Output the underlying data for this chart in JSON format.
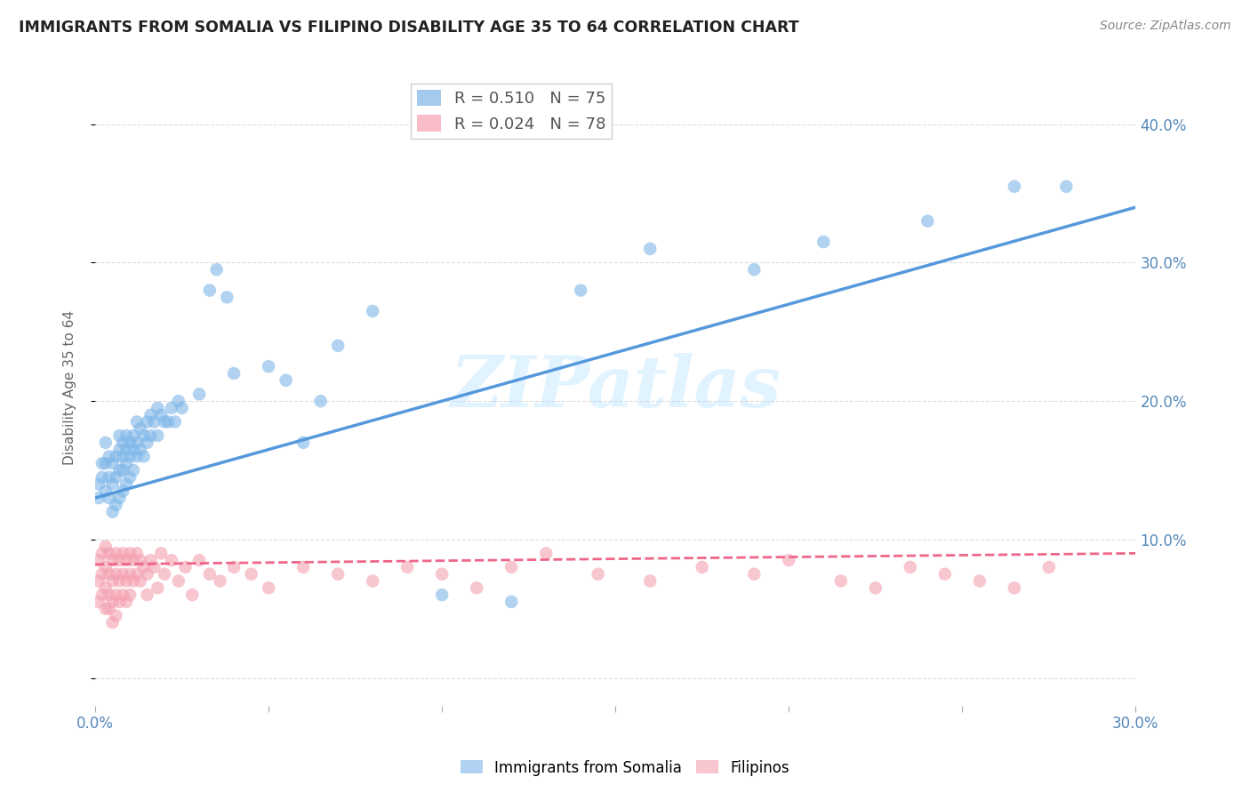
{
  "title": "IMMIGRANTS FROM SOMALIA VS FILIPINO DISABILITY AGE 35 TO 64 CORRELATION CHART",
  "source": "Source: ZipAtlas.com",
  "ylabel": "Disability Age 35 to 64",
  "xlim": [
    0.0,
    0.3
  ],
  "ylim": [
    -0.02,
    0.44
  ],
  "xticks": [
    0.0,
    0.05,
    0.1,
    0.15,
    0.2,
    0.25,
    0.3
  ],
  "xtick_labels": [
    "0.0%",
    "",
    "",
    "",
    "",
    "",
    "30.0%"
  ],
  "yticks": [
    0.0,
    0.1,
    0.2,
    0.3,
    0.4
  ],
  "ytick_labels": [
    "",
    "10.0%",
    "20.0%",
    "30.0%",
    "40.0%"
  ],
  "legend_somalia": "Immigrants from Somalia",
  "legend_filipino": "Filipinos",
  "R_somalia": 0.51,
  "N_somalia": 75,
  "R_filipino": 0.024,
  "N_filipino": 78,
  "color_somalia": "#7EB6E8",
  "color_filipino": "#F4A0B0",
  "watermark": "ZIPatlas",
  "background_color": "#ffffff",
  "grid_color": "#dddddd",
  "somalia_x": [
    0.001,
    0.001,
    0.002,
    0.002,
    0.003,
    0.003,
    0.003,
    0.004,
    0.004,
    0.004,
    0.005,
    0.005,
    0.005,
    0.006,
    0.006,
    0.006,
    0.007,
    0.007,
    0.007,
    0.007,
    0.008,
    0.008,
    0.008,
    0.008,
    0.009,
    0.009,
    0.009,
    0.009,
    0.01,
    0.01,
    0.01,
    0.011,
    0.011,
    0.011,
    0.012,
    0.012,
    0.012,
    0.013,
    0.013,
    0.014,
    0.014,
    0.015,
    0.015,
    0.016,
    0.016,
    0.017,
    0.018,
    0.018,
    0.019,
    0.02,
    0.021,
    0.022,
    0.023,
    0.024,
    0.025,
    0.03,
    0.033,
    0.035,
    0.038,
    0.04,
    0.05,
    0.055,
    0.06,
    0.065,
    0.07,
    0.08,
    0.1,
    0.12,
    0.14,
    0.16,
    0.19,
    0.21,
    0.24,
    0.265,
    0.28
  ],
  "somalia_y": [
    0.13,
    0.14,
    0.145,
    0.155,
    0.135,
    0.155,
    0.17,
    0.13,
    0.145,
    0.16,
    0.12,
    0.14,
    0.155,
    0.125,
    0.145,
    0.16,
    0.13,
    0.15,
    0.165,
    0.175,
    0.135,
    0.15,
    0.16,
    0.17,
    0.14,
    0.155,
    0.165,
    0.175,
    0.145,
    0.16,
    0.17,
    0.15,
    0.165,
    0.175,
    0.16,
    0.17,
    0.185,
    0.165,
    0.18,
    0.16,
    0.175,
    0.17,
    0.185,
    0.175,
    0.19,
    0.185,
    0.195,
    0.175,
    0.19,
    0.185,
    0.185,
    0.195,
    0.185,
    0.2,
    0.195,
    0.205,
    0.28,
    0.295,
    0.275,
    0.22,
    0.225,
    0.215,
    0.17,
    0.2,
    0.24,
    0.265,
    0.06,
    0.055,
    0.28,
    0.31,
    0.295,
    0.315,
    0.33,
    0.355,
    0.355
  ],
  "filipino_x": [
    0.001,
    0.001,
    0.001,
    0.002,
    0.002,
    0.002,
    0.003,
    0.003,
    0.003,
    0.003,
    0.004,
    0.004,
    0.004,
    0.004,
    0.005,
    0.005,
    0.005,
    0.005,
    0.006,
    0.006,
    0.006,
    0.006,
    0.007,
    0.007,
    0.007,
    0.008,
    0.008,
    0.008,
    0.009,
    0.009,
    0.009,
    0.01,
    0.01,
    0.01,
    0.011,
    0.011,
    0.012,
    0.012,
    0.013,
    0.013,
    0.014,
    0.015,
    0.015,
    0.016,
    0.017,
    0.018,
    0.019,
    0.02,
    0.022,
    0.024,
    0.026,
    0.028,
    0.03,
    0.033,
    0.036,
    0.04,
    0.045,
    0.05,
    0.06,
    0.07,
    0.08,
    0.09,
    0.1,
    0.11,
    0.12,
    0.13,
    0.145,
    0.16,
    0.175,
    0.19,
    0.2,
    0.215,
    0.225,
    0.235,
    0.245,
    0.255,
    0.265,
    0.275
  ],
  "filipino_y": [
    0.085,
    0.07,
    0.055,
    0.09,
    0.075,
    0.06,
    0.095,
    0.08,
    0.065,
    0.05,
    0.09,
    0.075,
    0.06,
    0.05,
    0.085,
    0.07,
    0.055,
    0.04,
    0.09,
    0.075,
    0.06,
    0.045,
    0.085,
    0.07,
    0.055,
    0.09,
    0.075,
    0.06,
    0.085,
    0.07,
    0.055,
    0.09,
    0.075,
    0.06,
    0.085,
    0.07,
    0.09,
    0.075,
    0.085,
    0.07,
    0.08,
    0.075,
    0.06,
    0.085,
    0.08,
    0.065,
    0.09,
    0.075,
    0.085,
    0.07,
    0.08,
    0.06,
    0.085,
    0.075,
    0.07,
    0.08,
    0.075,
    0.065,
    0.08,
    0.075,
    0.07,
    0.08,
    0.075,
    0.065,
    0.08,
    0.09,
    0.075,
    0.07,
    0.08,
    0.075,
    0.085,
    0.07,
    0.065,
    0.08,
    0.075,
    0.07,
    0.065,
    0.08
  ]
}
